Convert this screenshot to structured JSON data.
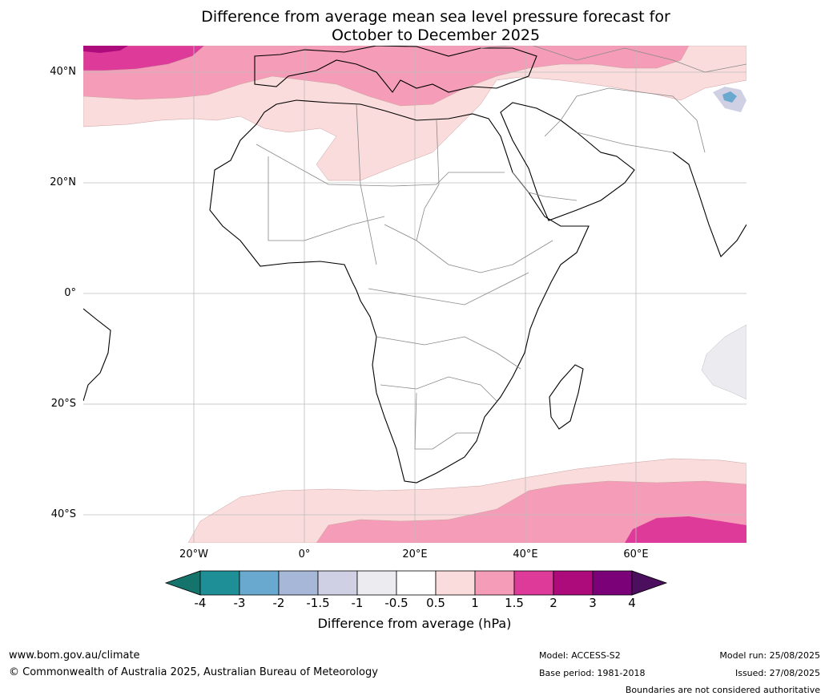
{
  "title": {
    "line1": "Difference from average mean sea level pressure forecast for",
    "line2": "October to December 2025"
  },
  "map": {
    "lat_labels": [
      "40°N",
      "20°N",
      "0°",
      "20°S",
      "40°S"
    ],
    "lon_labels": [
      "20°W",
      "0°",
      "20°E",
      "40°E",
      "60°E"
    ]
  },
  "colorbar": {
    "label": "Difference from average (hPa)",
    "ticks": [
      "-4",
      "-3",
      "-2",
      "-1.5",
      "-1",
      "-0.5",
      "0.5",
      "1",
      "1.5",
      "2",
      "3",
      "4"
    ],
    "colors": [
      "#14736b",
      "#1f8f97",
      "#6aa9cf",
      "#a6b7d8",
      "#cfd0e4",
      "#ecebf0",
      "#ffffff",
      "#fbdcdc",
      "#f59db8",
      "#dd3a9a",
      "#ad0a7b",
      "#7a0177",
      "#4b0f5e"
    ]
  },
  "footer": {
    "website": "www.bom.gov.au/climate",
    "copyright": "© Commonwealth of Australia 2025, Australian Bureau of Meteorology",
    "model": "Model: ACCESS-S2",
    "base_period": "Base period: 1981-2018",
    "model_run": "Model run: 25/08/2025",
    "issued": "Issued: 27/08/2025",
    "disclaimer": "Boundaries are not considered authoritative"
  }
}
